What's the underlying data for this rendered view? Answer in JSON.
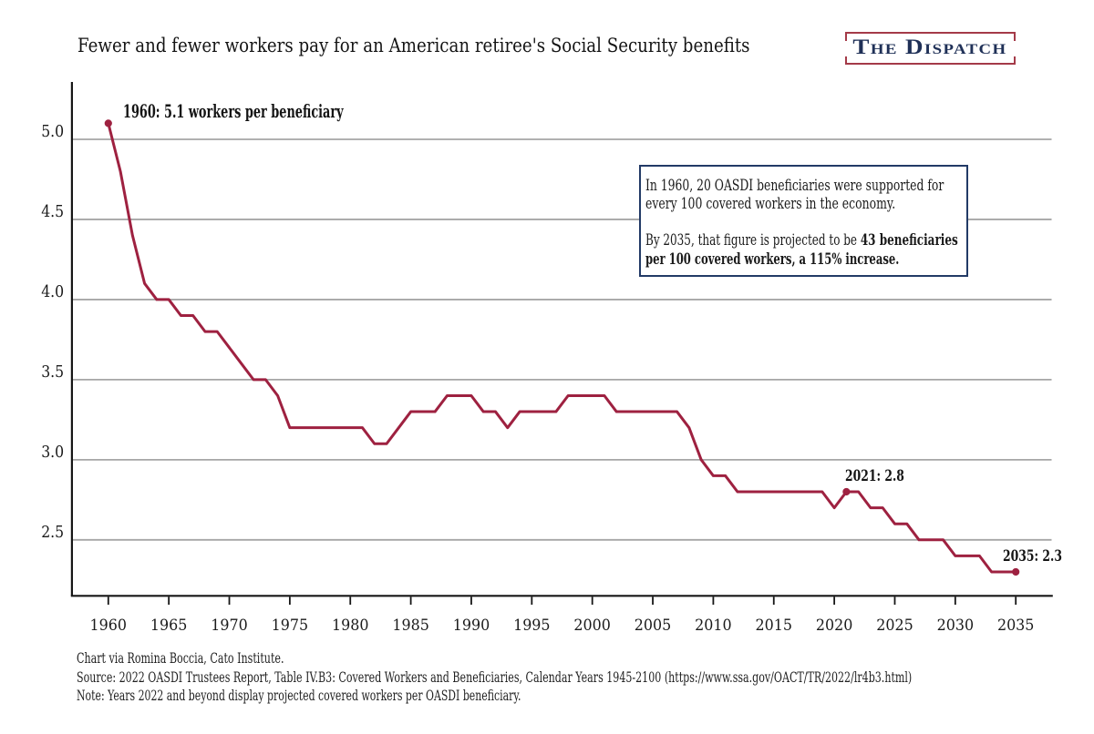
{
  "title": "Fewer and fewer workers pay for an American retiree's Social Security benefits",
  "logo": {
    "text": "The Dispatch"
  },
  "chart_data": {
    "type": "line",
    "title": "Fewer and fewer workers pay for an American retiree's Social Security benefits",
    "xlabel": "",
    "ylabel": "",
    "start_year": 1960,
    "values": [
      5.1,
      4.8,
      4.4,
      4.1,
      4.0,
      4.0,
      3.9,
      3.9,
      3.8,
      3.8,
      3.7,
      3.6,
      3.5,
      3.5,
      3.4,
      3.2,
      3.2,
      3.2,
      3.2,
      3.2,
      3.2,
      3.2,
      3.1,
      3.1,
      3.2,
      3.3,
      3.3,
      3.3,
      3.4,
      3.4,
      3.4,
      3.3,
      3.3,
      3.2,
      3.3,
      3.3,
      3.3,
      3.3,
      3.4,
      3.4,
      3.4,
      3.4,
      3.3,
      3.3,
      3.3,
      3.3,
      3.3,
      3.3,
      3.2,
      3.0,
      2.9,
      2.9,
      2.8,
      2.8,
      2.8,
      2.8,
      2.8,
      2.8,
      2.8,
      2.8,
      2.7,
      2.8,
      2.8,
      2.7,
      2.7,
      2.6,
      2.6,
      2.5,
      2.5,
      2.5,
      2.4,
      2.4,
      2.4,
      2.3,
      2.3,
      2.3
    ],
    "x_ticks": [
      1960,
      1965,
      1970,
      1975,
      1980,
      1985,
      1990,
      1995,
      2000,
      2005,
      2010,
      2015,
      2020,
      2025,
      2030,
      2035
    ],
    "y_ticks": [
      "5.0",
      "4.5",
      "4.0",
      "3.5",
      "3.0",
      "2.5"
    ],
    "xlim": [
      1957.0,
      2038.1
    ],
    "ylim": [
      2.15,
      5.36
    ],
    "grid": "horizontal-only",
    "legend": "none",
    "line_color": "#9e2140",
    "markers": [
      {
        "year": 1960,
        "value": 5.1
      },
      {
        "year": 2021,
        "value": 2.8
      },
      {
        "year": 2035,
        "value": 2.3
      }
    ],
    "annotations": [
      {
        "id": "start",
        "text": "1960: 5.1 workers per beneficiary"
      },
      {
        "id": "mid",
        "text": "2021: 2.8"
      },
      {
        "id": "end",
        "text": "2035: 2.3"
      }
    ]
  },
  "callout": {
    "lines": [
      [
        {
          "text": "In 1960, 20 OASDI beneficiaries were supported for",
          "bold": false
        }
      ],
      [
        {
          "text": "every 100 covered workers in the economy.",
          "bold": false
        }
      ],
      [
        {
          "text": "By 2035, that figure is projected to be ",
          "bold": false
        },
        {
          "text": "43 beneficiaries",
          "bold": true
        }
      ],
      [
        {
          "text": "per 100 covered workers, a 115% increase.",
          "bold": true
        }
      ]
    ],
    "para_break_after_line": 2
  },
  "footer": {
    "line1": "Chart via Romina Boccia, Cato Institute.",
    "line2": "Source: 2022 OASDI Trustees Report, Table IV.B3: Covered Workers and Beneficiaries, Calendar Years 1945-2100 (https://www.ssa.gov/OACT/TR/2022/lr4b3.html)",
    "line3": "Note: Years 2022 and beyond display projected covered workers per OASDI beneficiary."
  }
}
